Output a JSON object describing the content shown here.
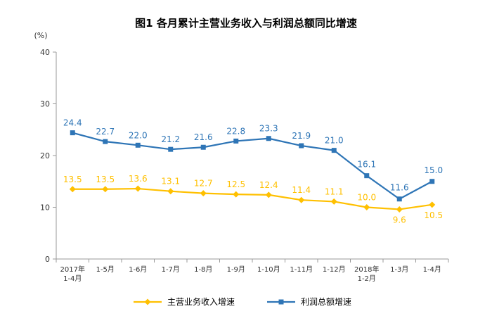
{
  "chart_data": {
    "type": "line",
    "title": "图1  各月累计主营业务收入与利润总额同比增速",
    "ylabel": "(%)",
    "ylim": [
      0,
      40
    ],
    "yticks": [
      0,
      10,
      20,
      30,
      40
    ],
    "grid": false,
    "legend_position": "bottom",
    "categories": [
      "2017年\n1-4月",
      "1-5月",
      "1-6月",
      "1-7月",
      "1-8月",
      "1-9月",
      "1-10月",
      "1-11月",
      "1-12月",
      "2018年\n1-2月",
      "1-3月",
      "1-4月"
    ],
    "series": [
      {
        "name": "主营业务收入增速",
        "color": "#FFC000",
        "marker": "diamond",
        "values": [
          13.5,
          13.5,
          13.6,
          13.1,
          12.7,
          12.5,
          12.4,
          11.4,
          11.1,
          10.0,
          9.6,
          10.5
        ],
        "labels": [
          "13.5",
          "13.5",
          "13.6",
          "13.1",
          "12.7",
          "12.5",
          "12.4",
          "11.4",
          "11.1",
          "10.0",
          "9.6",
          "10.5"
        ]
      },
      {
        "name": "利润总额增速",
        "color": "#2E75B6",
        "marker": "square",
        "values": [
          24.4,
          22.7,
          22.0,
          21.2,
          21.6,
          22.8,
          23.3,
          21.9,
          21.0,
          16.1,
          11.6,
          15.0
        ],
        "labels": [
          "24.4",
          "22.7",
          "22.0",
          "21.2",
          "21.6",
          "22.8",
          "23.3",
          "21.9",
          "21.0",
          "16.1",
          "11.6",
          "15.0"
        ]
      }
    ]
  }
}
